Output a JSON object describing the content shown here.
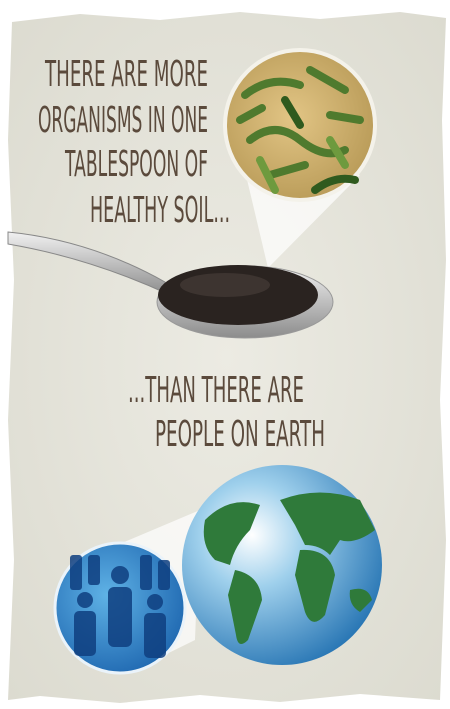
{
  "headline": {
    "lines": [
      "THERE ARE MORE",
      "ORGANISMS IN ONE",
      "TABLESPOON OF",
      "HEALTHY SOIL..."
    ]
  },
  "tagline": {
    "lines": [
      "...THAN THERE ARE",
      "PEOPLE ON EARTH"
    ]
  }
}
